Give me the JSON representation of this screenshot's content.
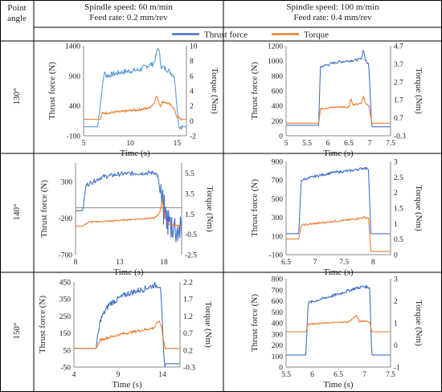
{
  "header": {
    "point_angle": "Point angle",
    "left_speed": "Spindle speed: 60 m/min",
    "left_feed": "Feed rate: 0.2 mm/rev",
    "right_speed": "Spindle speed: 100 m/min",
    "right_feed": "Feed rate: 0.4 mm/rev"
  },
  "legend": {
    "thrust": "Thrust force",
    "torque": "Torque"
  },
  "rows": [
    "130°",
    "140°",
    "150°"
  ],
  "colors": {
    "thrust": "#4472c4",
    "torque": "#ed7d31"
  },
  "chart_data": [
    {
      "type": "line",
      "row": "130°",
      "col": "left",
      "xlabel": "Time (s)",
      "ylabel": "Thrust force (N)",
      "y2label": "Torque (Nm)",
      "xlim": [
        5,
        16
      ],
      "xticks": [
        5,
        10,
        15
      ],
      "ylim": [
        -100,
        1400
      ],
      "yticks": [
        -100,
        400,
        900,
        1400
      ],
      "y2lim": [
        -2,
        10
      ],
      "y2ticks": [
        -2,
        0,
        2,
        4,
        6,
        8,
        10
      ],
      "xcross": -100,
      "series": [
        {
          "name": "Thrust force",
          "axis": "left",
          "light": true,
          "x": [
            5,
            6.5,
            7.2,
            7.5,
            9,
            11,
            12,
            12.5,
            13,
            13.3,
            14,
            14.7,
            15.2,
            15.6,
            16
          ],
          "y": [
            50,
            50,
            950,
            900,
            960,
            1000,
            1080,
            1100,
            1380,
            1050,
            1000,
            900,
            50,
            50,
            50
          ],
          "noise": 45
        },
        {
          "name": "Torque",
          "axis": "right",
          "x": [
            5,
            6.8,
            7.0,
            9,
            11,
            12,
            12.5,
            12.8,
            13.2,
            13.5,
            14.5,
            15,
            15.5,
            16
          ],
          "y": [
            0.2,
            0.2,
            1.0,
            1.2,
            1.5,
            1.7,
            2.3,
            3.3,
            2.0,
            2.6,
            2.0,
            0.5,
            0.2,
            0.2
          ],
          "noise": 0.18
        }
      ]
    },
    {
      "type": "line",
      "row": "130°",
      "col": "right",
      "xlabel": "Time (s)",
      "ylabel": "Thrust force (N)",
      "y2label": "Torque (Nm)",
      "xlim": [
        5,
        7.5
      ],
      "xticks": [
        5,
        5.5,
        6,
        6.5,
        7,
        7.5
      ],
      "ylim": [
        0,
        1200
      ],
      "yticks": [
        0,
        200,
        400,
        600,
        800,
        1000,
        1200
      ],
      "y2lim": [
        -0.3,
        4.7
      ],
      "y2ticks": [
        -0.3,
        0.7,
        1.7,
        2.7,
        3.7,
        4.7
      ],
      "xcross": 0,
      "series": [
        {
          "name": "Thrust force",
          "axis": "left",
          "x": [
            5,
            5.78,
            5.82,
            6.2,
            6.5,
            6.8,
            6.85,
            6.9,
            6.98,
            7.05,
            7.5
          ],
          "y": [
            140,
            140,
            920,
            980,
            1000,
            1020,
            1160,
            1000,
            950,
            120,
            120
          ],
          "noise": 18
        },
        {
          "name": "Torque",
          "axis": "right",
          "x": [
            5,
            5.78,
            5.82,
            6.2,
            6.5,
            6.55,
            6.6,
            6.8,
            6.85,
            6.9,
            6.98,
            7.05,
            7.5
          ],
          "y": [
            0.4,
            0.4,
            1.2,
            1.3,
            1.3,
            1.8,
            1.4,
            1.5,
            1.9,
            1.5,
            1.4,
            0.4,
            0.4
          ],
          "noise": 0.05
        }
      ]
    },
    {
      "type": "line",
      "row": "140°",
      "col": "left",
      "xlabel": "Time (s)",
      "ylabel": "Thrust force (N)",
      "y2label": "Torque (Nm)",
      "xlim": [
        8,
        20
      ],
      "xticks": [
        8,
        13,
        18
      ],
      "ylim": [
        -700,
        550
      ],
      "yticks": [
        -700,
        -200,
        300
      ],
      "y2lim": [
        -2.5,
        6.5
      ],
      "y2ticks": [
        -2.5,
        -0.5,
        1.5,
        3.5,
        5.5
      ],
      "xcross": -60,
      "series": [
        {
          "name": "Thrust force",
          "axis": "left",
          "x": [
            8,
            8.8,
            9.2,
            11,
            13,
            15,
            17,
            17.3,
            17.6,
            18,
            18.5,
            19,
            19.5,
            20
          ],
          "y": [
            -100,
            -100,
            250,
            360,
            400,
            410,
            420,
            380,
            100,
            -100,
            -250,
            -300,
            -350,
            -380
          ],
          "noise": 30,
          "tailnoise": 220,
          "tailstart": 17.6
        },
        {
          "name": "Torque",
          "axis": "right",
          "x": [
            8,
            8.8,
            9.5,
            12,
            15,
            17,
            17.5,
            17.8,
            18.2,
            18.6,
            20
          ],
          "y": [
            0.3,
            0.3,
            0.7,
            0.8,
            1.0,
            1.1,
            1.6,
            2.8,
            0.9,
            0.5,
            0.3
          ],
          "noise": 0.07
        }
      ]
    },
    {
      "type": "line",
      "row": "140°",
      "col": "right",
      "xlabel": "Time (s)",
      "ylabel": "Thrust force (N)",
      "y2label": "Torque (Nm)",
      "xlim": [
        6.5,
        8.3
      ],
      "xticks": [
        6.5,
        7,
        7.5,
        8
      ],
      "ylim": [
        -100,
        900
      ],
      "yticks": [
        -100,
        100,
        300,
        500,
        700,
        900
      ],
      "y2lim": [
        0,
        3
      ],
      "y2ticks": [
        0,
        0.5,
        1,
        1.5,
        2,
        2.5,
        3
      ],
      "xcross": -100,
      "series": [
        {
          "name": "Thrust force",
          "axis": "left",
          "x": [
            6.5,
            6.72,
            6.76,
            7.0,
            7.3,
            7.6,
            7.85,
            7.92,
            7.96,
            8.3
          ],
          "y": [
            125,
            125,
            700,
            740,
            780,
            800,
            830,
            820,
            125,
            125
          ],
          "noise": 14
        },
        {
          "name": "Torque",
          "axis": "right",
          "x": [
            6.5,
            6.72,
            6.76,
            7.0,
            7.3,
            7.6,
            7.85,
            7.92,
            7.96,
            8.3
          ],
          "y": [
            0.5,
            0.5,
            0.95,
            1.0,
            1.07,
            1.12,
            1.2,
            1.18,
            0.1,
            0.1
          ],
          "noise": 0.03
        }
      ]
    },
    {
      "type": "line",
      "row": "150°",
      "col": "left",
      "xlabel": "Time (s)",
      "ylabel": "Thrust force (N)",
      "y2label": "Torque (Nm)",
      "xlim": [
        4,
        16
      ],
      "xticks": [
        4,
        9,
        14
      ],
      "ylim": [
        -50,
        450
      ],
      "yticks": [
        -50,
        50,
        150,
        250,
        350,
        450
      ],
      "y2lim": [
        -0.3,
        2.2
      ],
      "y2ticks": [
        -0.3,
        0.2,
        0.7,
        1.2,
        1.7,
        2.2
      ],
      "xcross": -50,
      "series": [
        {
          "name": "Thrust force",
          "axis": "left",
          "x": [
            4,
            6.5,
            7.0,
            8,
            10,
            12,
            13,
            13.8,
            14.2,
            14.4,
            16
          ],
          "y": [
            60,
            60,
            230,
            320,
            380,
            410,
            430,
            430,
            -30,
            -30,
            -30
          ],
          "noise": 18
        },
        {
          "name": "Torque",
          "axis": "right",
          "x": [
            4,
            6.5,
            7.0,
            9,
            11,
            13,
            13.6,
            13.9,
            14.3,
            14.5,
            16
          ],
          "y": [
            0.25,
            0.25,
            0.5,
            0.65,
            0.75,
            0.85,
            1.05,
            0.9,
            0.25,
            0.25,
            0.25
          ],
          "noise": 0.04
        }
      ]
    },
    {
      "type": "line",
      "row": "150°",
      "col": "right",
      "xlabel": "Time (s)",
      "ylabel": "Thrust force (N)",
      "y2label": "Torque (Nm)",
      "xlim": [
        5.5,
        7.5
      ],
      "xticks": [
        5.5,
        6,
        6.5,
        7,
        7.5
      ],
      "ylim": [
        0,
        800
      ],
      "yticks": [
        0,
        100,
        200,
        300,
        400,
        500,
        600,
        700,
        800
      ],
      "y2lim": [
        -1,
        3
      ],
      "y2ticks": [
        -1,
        0,
        1,
        2,
        3
      ],
      "xcross": 0,
      "series": [
        {
          "name": "Thrust force",
          "axis": "left",
          "x": [
            5.5,
            5.88,
            5.92,
            6.2,
            6.5,
            6.8,
            7.0,
            7.1,
            7.14,
            7.5
          ],
          "y": [
            110,
            110,
            580,
            620,
            660,
            710,
            730,
            720,
            110,
            110
          ],
          "noise": 14
        },
        {
          "name": "Torque",
          "axis": "right",
          "x": [
            5.5,
            5.88,
            5.92,
            6.3,
            6.7,
            6.85,
            6.9,
            7.0,
            7.1,
            7.14,
            7.5
          ],
          "y": [
            0.6,
            0.6,
            0.95,
            1.0,
            1.05,
            1.35,
            1.05,
            1.1,
            1.05,
            0.6,
            0.6
          ],
          "noise": 0.03
        }
      ]
    }
  ]
}
